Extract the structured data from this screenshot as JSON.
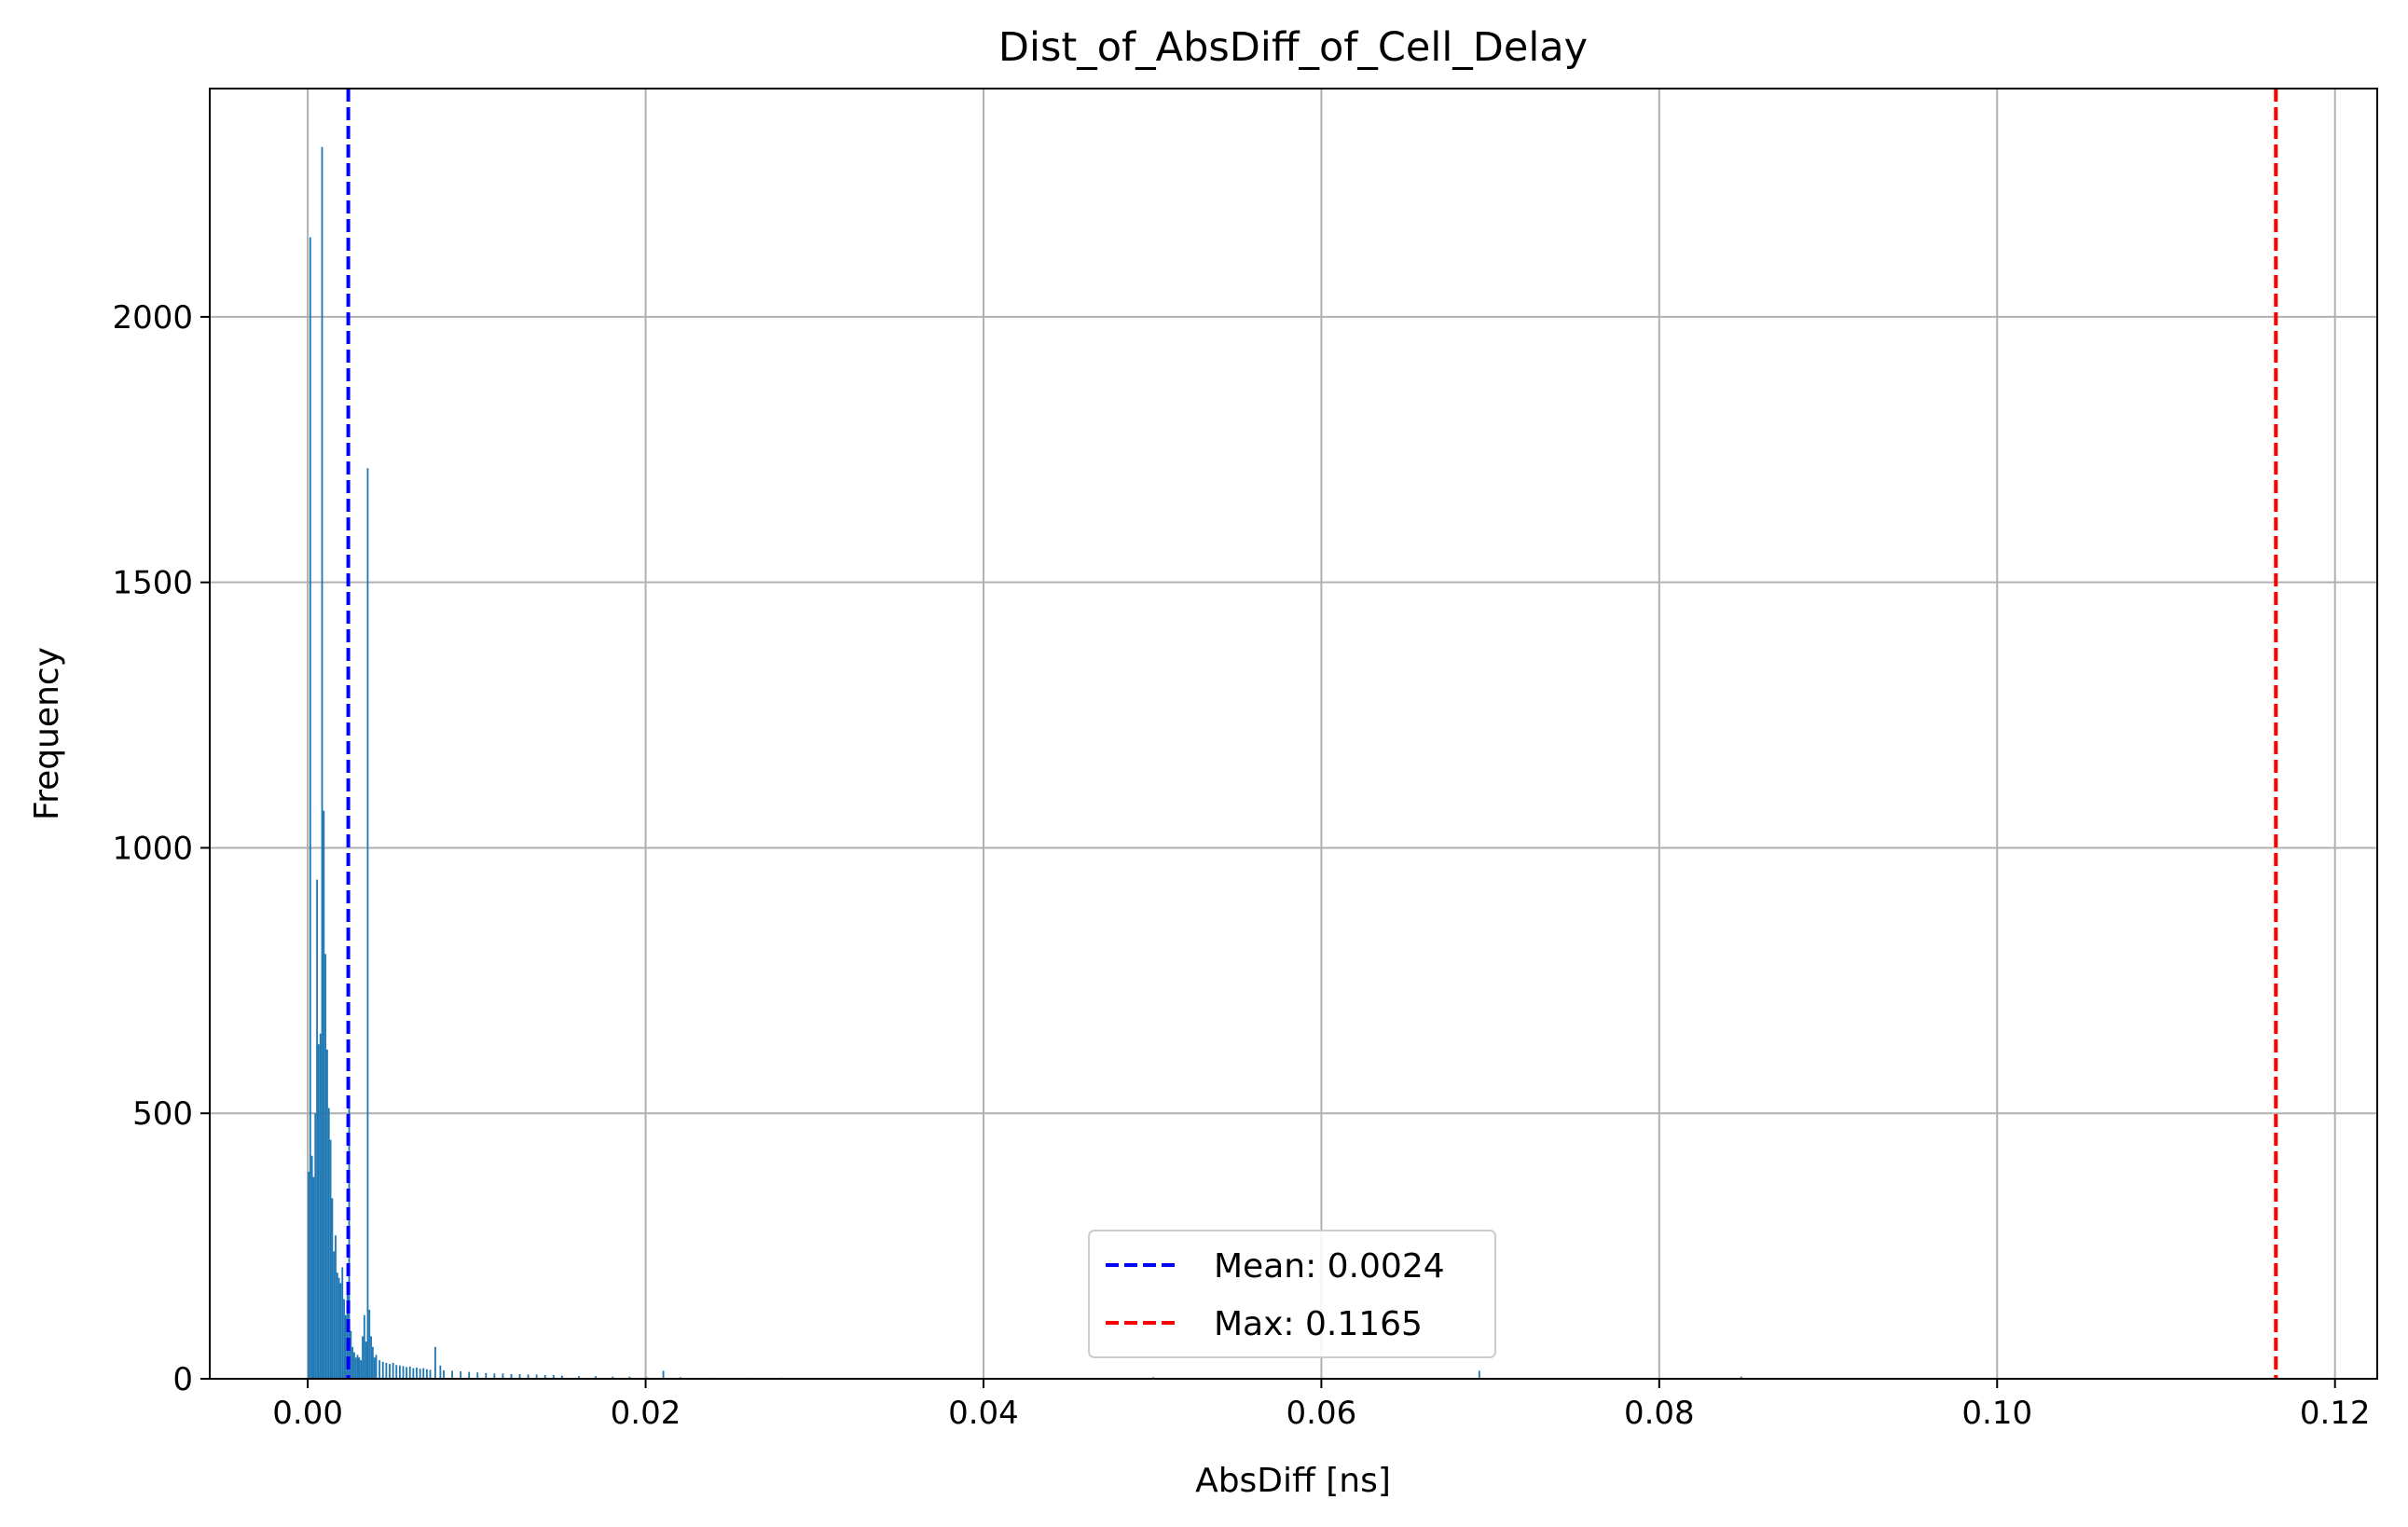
{
  "chart_data": {
    "type": "bar",
    "title": "Dist_of_AbsDiff_of_Cell_Delay",
    "xlabel": "AbsDiff [ns]",
    "ylabel": "Frequency",
    "xlim": [
      -0.0058,
      0.1225
    ],
    "ylim": [
      0,
      2430
    ],
    "xticks": [
      0.0,
      0.02,
      0.04,
      0.06,
      0.08,
      0.1,
      0.12
    ],
    "xtick_labels": [
      "0.00",
      "0.02",
      "0.04",
      "0.06",
      "0.08",
      "0.10",
      "0.12"
    ],
    "yticks": [
      0,
      500,
      1000,
      1500,
      2000
    ],
    "ytick_labels": [
      "0",
      "500",
      "1000",
      "1500",
      "2000"
    ],
    "grid": true,
    "legend_position": "lower-center",
    "bar_color": "#1f77b4",
    "series": [
      {
        "name": "AbsDiff histogram",
        "bins": [
          {
            "x": 0.0,
            "y": 390
          },
          {
            "x": 0.0001,
            "y": 2150
          },
          {
            "x": 0.0002,
            "y": 420
          },
          {
            "x": 0.0003,
            "y": 380
          },
          {
            "x": 0.0004,
            "y": 500
          },
          {
            "x": 0.0005,
            "y": 940
          },
          {
            "x": 0.0006,
            "y": 630
          },
          {
            "x": 0.0007,
            "y": 650
          },
          {
            "x": 0.0008,
            "y": 2320
          },
          {
            "x": 0.0009,
            "y": 1070
          },
          {
            "x": 0.001,
            "y": 800
          },
          {
            "x": 0.0011,
            "y": 620
          },
          {
            "x": 0.0012,
            "y": 510
          },
          {
            "x": 0.0013,
            "y": 450
          },
          {
            "x": 0.0014,
            "y": 340
          },
          {
            "x": 0.0015,
            "y": 240
          },
          {
            "x": 0.0016,
            "y": 270
          },
          {
            "x": 0.0017,
            "y": 200
          },
          {
            "x": 0.0018,
            "y": 190
          },
          {
            "x": 0.0019,
            "y": 180
          },
          {
            "x": 0.002,
            "y": 210
          },
          {
            "x": 0.0021,
            "y": 150
          },
          {
            "x": 0.0022,
            "y": 120
          },
          {
            "x": 0.0023,
            "y": 160
          },
          {
            "x": 0.0024,
            "y": 510
          },
          {
            "x": 0.0025,
            "y": 90
          },
          {
            "x": 0.0026,
            "y": 60
          },
          {
            "x": 0.0027,
            "y": 50
          },
          {
            "x": 0.0028,
            "y": 40
          },
          {
            "x": 0.0029,
            "y": 45
          },
          {
            "x": 0.003,
            "y": 40
          },
          {
            "x": 0.0031,
            "y": 35
          },
          {
            "x": 0.0032,
            "y": 80
          },
          {
            "x": 0.0033,
            "y": 120
          },
          {
            "x": 0.0034,
            "y": 70
          },
          {
            "x": 0.0035,
            "y": 1715
          },
          {
            "x": 0.0036,
            "y": 130
          },
          {
            "x": 0.0037,
            "y": 80
          },
          {
            "x": 0.0038,
            "y": 60
          },
          {
            "x": 0.0039,
            "y": 40
          },
          {
            "x": 0.004,
            "y": 45
          },
          {
            "x": 0.0042,
            "y": 35
          },
          {
            "x": 0.0044,
            "y": 32
          },
          {
            "x": 0.0046,
            "y": 30
          },
          {
            "x": 0.0048,
            "y": 28
          },
          {
            "x": 0.005,
            "y": 30
          },
          {
            "x": 0.0052,
            "y": 26
          },
          {
            "x": 0.0054,
            "y": 25
          },
          {
            "x": 0.0056,
            "y": 24
          },
          {
            "x": 0.0058,
            "y": 22
          },
          {
            "x": 0.006,
            "y": 23
          },
          {
            "x": 0.0062,
            "y": 20
          },
          {
            "x": 0.0064,
            "y": 21
          },
          {
            "x": 0.0066,
            "y": 19
          },
          {
            "x": 0.0068,
            "y": 20
          },
          {
            "x": 0.007,
            "y": 18
          },
          {
            "x": 0.0072,
            "y": 17
          },
          {
            "x": 0.0075,
            "y": 60
          },
          {
            "x": 0.0078,
            "y": 25
          },
          {
            "x": 0.008,
            "y": 16
          },
          {
            "x": 0.0085,
            "y": 15
          },
          {
            "x": 0.009,
            "y": 14
          },
          {
            "x": 0.0095,
            "y": 13
          },
          {
            "x": 0.01,
            "y": 12
          },
          {
            "x": 0.0105,
            "y": 11
          },
          {
            "x": 0.011,
            "y": 10
          },
          {
            "x": 0.0115,
            "y": 10
          },
          {
            "x": 0.012,
            "y": 9
          },
          {
            "x": 0.0125,
            "y": 9
          },
          {
            "x": 0.013,
            "y": 8
          },
          {
            "x": 0.0135,
            "y": 8
          },
          {
            "x": 0.014,
            "y": 7
          },
          {
            "x": 0.0145,
            "y": 7
          },
          {
            "x": 0.015,
            "y": 6
          },
          {
            "x": 0.016,
            "y": 5
          },
          {
            "x": 0.017,
            "y": 5
          },
          {
            "x": 0.018,
            "y": 4
          },
          {
            "x": 0.019,
            "y": 4
          },
          {
            "x": 0.02,
            "y": 3
          },
          {
            "x": 0.021,
            "y": 15
          },
          {
            "x": 0.022,
            "y": 3
          },
          {
            "x": 0.024,
            "y": 2
          },
          {
            "x": 0.026,
            "y": 2
          },
          {
            "x": 0.028,
            "y": 2
          },
          {
            "x": 0.03,
            "y": 1
          },
          {
            "x": 0.032,
            "y": 1
          },
          {
            "x": 0.035,
            "y": 1
          },
          {
            "x": 0.04,
            "y": 1
          },
          {
            "x": 0.05,
            "y": 3
          },
          {
            "x": 0.0693,
            "y": 15
          },
          {
            "x": 0.0848,
            "y": 4
          }
        ]
      }
    ],
    "reference_lines": [
      {
        "name": "Mean: 0.0024",
        "x": 0.0024,
        "color": "#0000ff",
        "style": "dashed"
      },
      {
        "name": "Max: 0.1165",
        "x": 0.1165,
        "color": "#ff0000",
        "style": "dashed"
      }
    ]
  }
}
